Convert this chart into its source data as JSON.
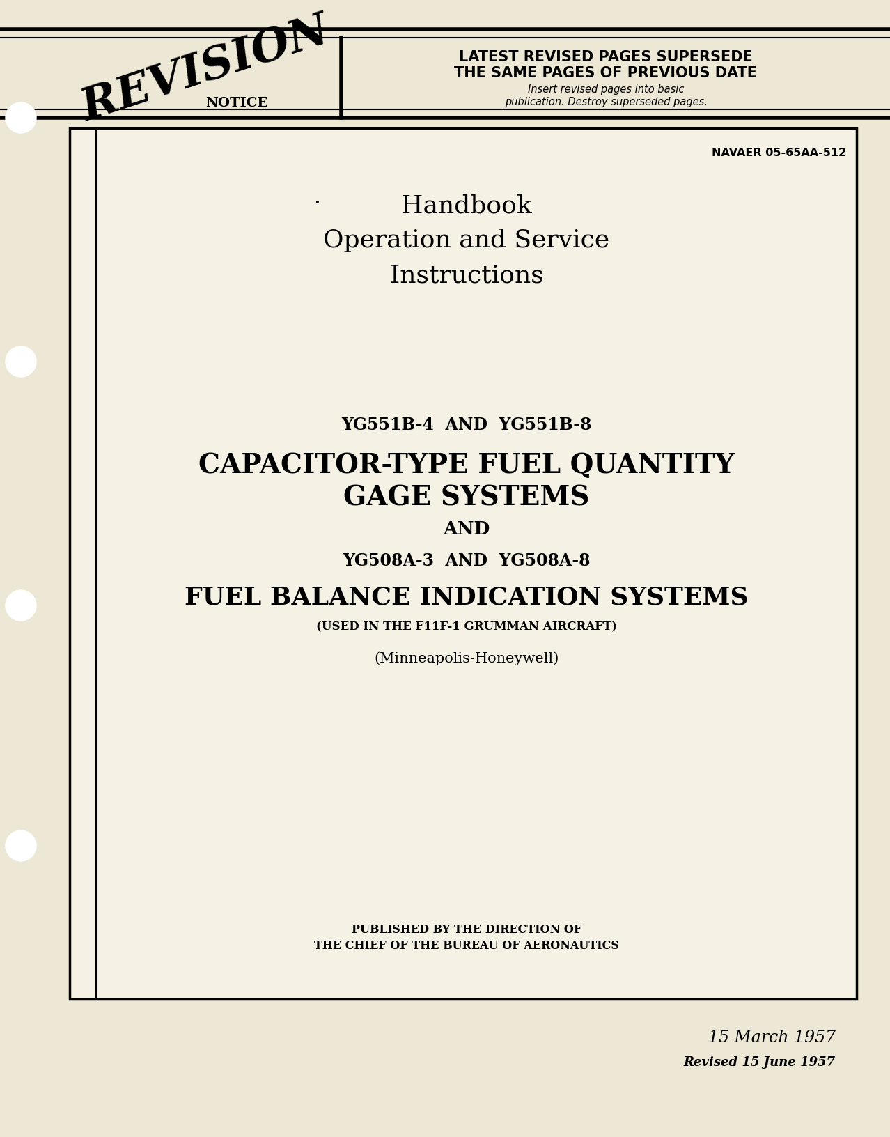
{
  "bg_color": "#ede8d5",
  "inner_bg": "#f5f1e4",
  "text_color": "#1a1a1a",
  "navaer": "NAVAER 05-65AA-512",
  "handbook_lines": [
    "Handbook",
    "Operation and Service",
    "Instructions"
  ],
  "model_line1": "YG551B-4  AND  YG551B-8",
  "title_line1": "CAPACITOR-TYPE FUEL QUANTITY",
  "title_line2": "GAGE SYSTEMS",
  "and_text": "AND",
  "model_line2": "YG508A-3  AND  YG508A-8",
  "title_line3": "FUEL BALANCE INDICATION SYSTEMS",
  "used_in": "(USED IN THE F11F-1 GRUMMAN AIRCRAFT)",
  "mfg": "(Minneapolis-Honeywell)",
  "published1": "PUBLISHED BY THE DIRECTION OF",
  "published2": "THE CHIEF OF THE BUREAU OF AERONAUTICS",
  "date1": "15 March 1957",
  "date2": "Revised 15 June 1957",
  "revision_line1": "LATEST REVISED PAGES SUPERSEDE",
  "revision_line2": "THE SAME PAGES OF PREVIOUS DATE",
  "revision_line3": "Insert revised pages into basic",
  "revision_line4": "publication. Destroy superseded pages.",
  "revision_notice": "REVISION",
  "notice_text": "NOTICE"
}
